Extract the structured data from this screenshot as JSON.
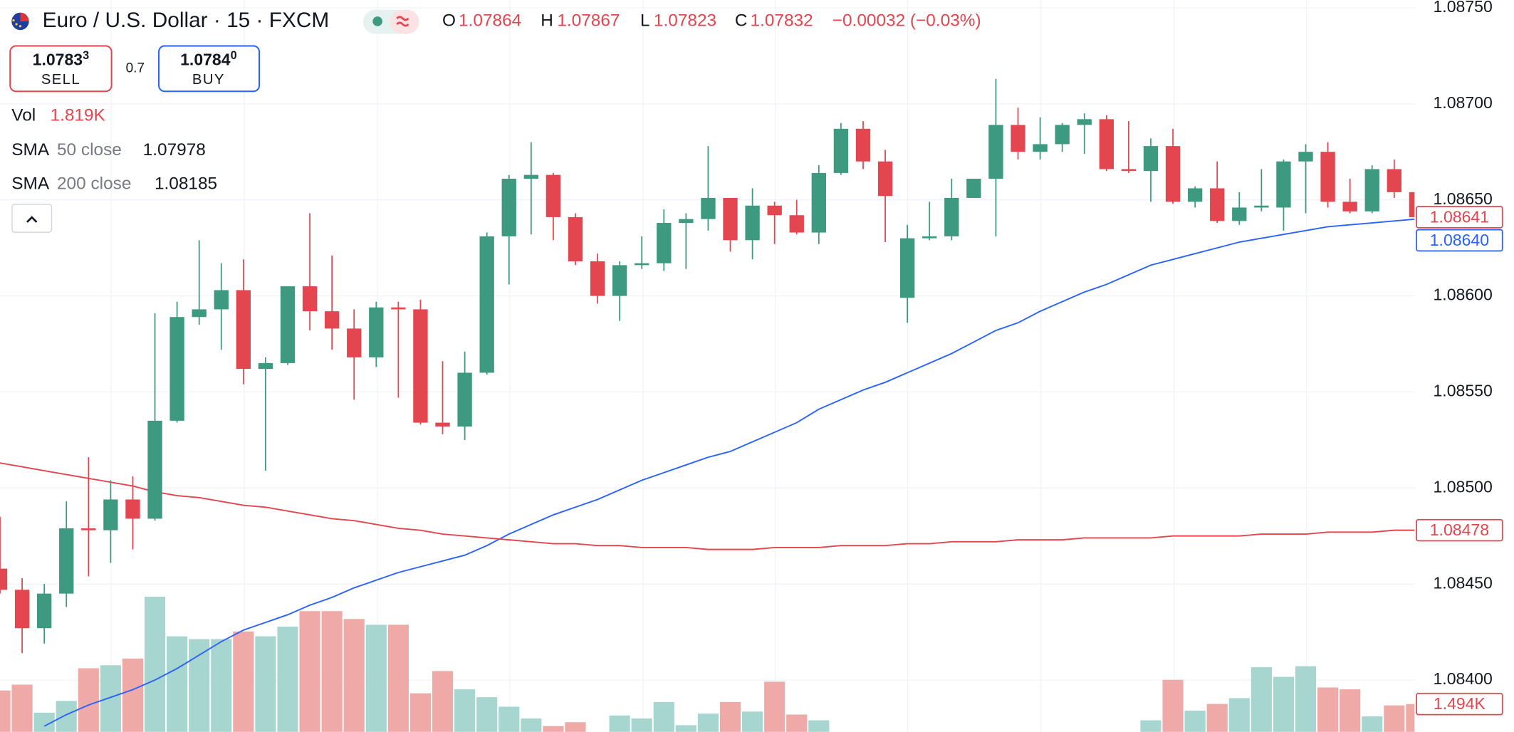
{
  "header": {
    "title": "Euro / U.S. Dollar · 15 · FXCM",
    "ohlc": [
      {
        "key": "O",
        "value": "1.07864"
      },
      {
        "key": "H",
        "value": "1.07867"
      },
      {
        "key": "L",
        "value": "1.07823"
      },
      {
        "key": "C",
        "value": "1.07832"
      }
    ],
    "change": "−0.00032 (−0.03%)",
    "sell": {
      "price": "1.0783",
      "price_sup": "3",
      "label": "SELL"
    },
    "spread": "0.7",
    "buy": {
      "price": "1.0784",
      "price_sup": "0",
      "label": "BUY"
    }
  },
  "chart_data": {
    "type": "candlestick",
    "ylim": [
      1.08373,
      1.08754
    ],
    "yticks": [
      {
        "value": 1.0875,
        "label": "1.08750"
      },
      {
        "value": 1.087,
        "label": "1.08700"
      },
      {
        "value": 1.0865,
        "label": "1.08650"
      },
      {
        "value": 1.086,
        "label": "1.08600"
      },
      {
        "value": 1.0855,
        "label": "1.08550"
      },
      {
        "value": 1.085,
        "label": "1.08500"
      },
      {
        "value": 1.0845,
        "label": "1.08450"
      },
      {
        "value": 1.084,
        "label": "1.08400"
      }
    ],
    "grid": true,
    "up_color": "#3d9a81",
    "down_color": "#e3464f",
    "open": [
      1.08458,
      1.08447,
      1.08427,
      1.08445,
      1.08479,
      1.08478,
      1.08494,
      1.08484,
      1.08535,
      1.08589,
      1.08593,
      1.08603,
      1.08562,
      1.08565,
      1.08605,
      1.08592,
      1.08583,
      1.08568,
      1.08594,
      1.08593,
      1.08534,
      1.08532,
      1.0856,
      1.08631,
      1.08661,
      1.08663,
      1.08641,
      1.08618,
      1.086,
      1.08616,
      1.08617,
      1.08638,
      1.0864,
      1.08651,
      1.08629,
      1.08647,
      1.08642,
      1.08633,
      1.08664,
      1.08687,
      1.0867,
      1.08599,
      1.0863,
      1.08631,
      1.08651,
      1.08661,
      1.08689,
      1.08675,
      1.08679,
      1.08689,
      1.08692,
      1.08666,
      1.08665,
      1.08678,
      1.08649,
      1.08656,
      1.08639,
      1.08646,
      1.08646,
      1.0867,
      1.08675,
      1.08649,
      1.08644,
      1.08666,
      1.08654
    ],
    "high": [
      1.08485,
      1.08453,
      1.0845,
      1.08493,
      1.08516,
      1.08504,
      1.08506,
      1.08591,
      1.08597,
      1.08629,
      1.08617,
      1.08619,
      1.08568,
      1.08605,
      1.08643,
      1.08621,
      1.08593,
      1.08597,
      1.08597,
      1.08598,
      1.08566,
      1.08571,
      1.08633,
      1.08663,
      1.0868,
      1.08664,
      1.08643,
      1.08622,
      1.08618,
      1.08631,
      1.08645,
      1.08643,
      1.08678,
      1.08651,
      1.08656,
      1.08649,
      1.0865,
      1.08668,
      1.0869,
      1.08691,
      1.08676,
      1.08637,
      1.08649,
      1.08661,
      1.08661,
      1.08713,
      1.08698,
      1.08693,
      1.0869,
      1.08695,
      1.08694,
      1.08691,
      1.08682,
      1.08687,
      1.08657,
      1.0867,
      1.08654,
      1.08666,
      1.08671,
      1.08679,
      1.0868,
      1.08661,
      1.08668,
      1.08671,
      1.08654
    ],
    "low": [
      1.08445,
      1.08414,
      1.08419,
      1.08438,
      1.08454,
      1.08461,
      1.08468,
      1.08483,
      1.08534,
      1.08585,
      1.08572,
      1.08554,
      1.08509,
      1.08564,
      1.08582,
      1.08572,
      1.08546,
      1.08563,
      1.08547,
      1.08533,
      1.08528,
      1.08525,
      1.08559,
      1.08606,
      1.08632,
      1.08629,
      1.08616,
      1.08596,
      1.08587,
      1.08614,
      1.08613,
      1.08614,
      1.08634,
      1.08623,
      1.08619,
      1.08627,
      1.08632,
      1.08627,
      1.08663,
      1.08666,
      1.08628,
      1.08586,
      1.08629,
      1.08629,
      1.08651,
      1.08631,
      1.08671,
      1.08671,
      1.08675,
      1.08674,
      1.08665,
      1.08664,
      1.08649,
      1.08648,
      1.08646,
      1.08638,
      1.08637,
      1.08644,
      1.08634,
      1.08643,
      1.08646,
      1.08643,
      1.08643,
      1.08651,
      1.08641
    ],
    "close": [
      1.08447,
      1.08427,
      1.08445,
      1.08479,
      1.08478,
      1.08494,
      1.08484,
      1.08535,
      1.08589,
      1.08593,
      1.08603,
      1.08562,
      1.08565,
      1.08605,
      1.08592,
      1.08583,
      1.08568,
      1.08594,
      1.08593,
      1.08534,
      1.08532,
      1.0856,
      1.08631,
      1.08661,
      1.08663,
      1.08641,
      1.08618,
      1.086,
      1.08616,
      1.08617,
      1.08638,
      1.0864,
      1.08651,
      1.08629,
      1.08647,
      1.08642,
      1.08633,
      1.08664,
      1.08687,
      1.0867,
      1.08652,
      1.0863,
      1.08631,
      1.08651,
      1.08661,
      1.08689,
      1.08675,
      1.08679,
      1.08689,
      1.08692,
      1.08666,
      1.08665,
      1.08678,
      1.08649,
      1.08656,
      1.08639,
      1.08646,
      1.08647,
      1.0867,
      1.08675,
      1.08649,
      1.08644,
      1.08666,
      1.08654,
      1.08641
    ],
    "volume": {
      "name": "Vol",
      "legend_value": "1.819K",
      "up_color": "#a7d6d1",
      "down_color": "#efaaa7",
      "ylim": [
        0,
        39.2
      ],
      "values": [
        2.22,
        2.53,
        1.03,
        1.66,
        3.41,
        3.57,
        3.93,
        7.24,
        5.12,
        4.97,
        4.97,
        5.38,
        5.12,
        5.64,
        6.47,
        6.47,
        6.05,
        5.74,
        5.74,
        2.07,
        3.26,
        2.28,
        1.86,
        1.35,
        0.72,
        0.31,
        0.52,
        null,
        0.88,
        0.72,
        1.6,
        0.36,
        0.98,
        1.6,
        1.09,
        2.69,
        0.93,
        0.62,
        null,
        null,
        null,
        null,
        null,
        null,
        null,
        null,
        null,
        null,
        null,
        null,
        null,
        null,
        0.62,
        2.79,
        1.14,
        1.5,
        1.81,
        3.47,
        2.95,
        3.52,
        2.38,
        2.28,
        0.83,
        1.42,
        1.494
      ],
      "last_label": "1.494K"
    },
    "indicators": [
      {
        "name": "SMA",
        "params": "50 close",
        "legend_value": "1.07978",
        "color": "#2962ff",
        "last_label": "1.08640",
        "values": [
          null,
          null,
          1.08376,
          1.08382,
          1.08387,
          1.08391,
          1.08395,
          1.084,
          1.08406,
          1.08413,
          1.0842,
          1.08426,
          1.0843,
          1.08434,
          1.08439,
          1.08443,
          1.08448,
          1.08452,
          1.08456,
          1.08459,
          1.08462,
          1.08465,
          1.0847,
          1.08476,
          1.08481,
          1.08486,
          1.0849,
          1.08494,
          1.08499,
          1.08504,
          1.08508,
          1.08512,
          1.08516,
          1.08519,
          1.08524,
          1.08529,
          1.08534,
          1.08541,
          1.08546,
          1.08551,
          1.08555,
          1.0856,
          1.08565,
          1.0857,
          1.08576,
          1.08582,
          1.08586,
          1.08592,
          1.08597,
          1.08602,
          1.08606,
          1.08611,
          1.08616,
          1.08619,
          1.08622,
          1.08625,
          1.08628,
          1.0863,
          1.08632,
          1.08634,
          1.08636,
          1.08637,
          1.08638,
          1.08639,
          1.0864
        ]
      },
      {
        "name": "SMA",
        "params": "200 close",
        "legend_value": "1.08185",
        "color": "#e3464f",
        "values": [
          1.08513,
          1.08511,
          1.08509,
          1.08507,
          1.08505,
          1.08503,
          1.08501,
          1.08498,
          1.08496,
          1.08495,
          1.08493,
          1.08491,
          1.0849,
          1.08488,
          1.08486,
          1.08484,
          1.08483,
          1.08481,
          1.08479,
          1.08478,
          1.08476,
          1.08475,
          1.08474,
          1.08473,
          1.08472,
          1.08471,
          1.08471,
          1.0847,
          1.0847,
          1.08469,
          1.08469,
          1.08469,
          1.08468,
          1.08468,
          1.08468,
          1.08469,
          1.08469,
          1.08469,
          1.0847,
          1.0847,
          1.0847,
          1.08471,
          1.08471,
          1.08472,
          1.08472,
          1.08472,
          1.08473,
          1.08473,
          1.08473,
          1.08474,
          1.08474,
          1.08474,
          1.08474,
          1.08475,
          1.08475,
          1.08475,
          1.08475,
          1.08476,
          1.08476,
          1.08476,
          1.08477,
          1.08477,
          1.08477,
          1.08478,
          1.08478
        ]
      }
    ]
  }
}
